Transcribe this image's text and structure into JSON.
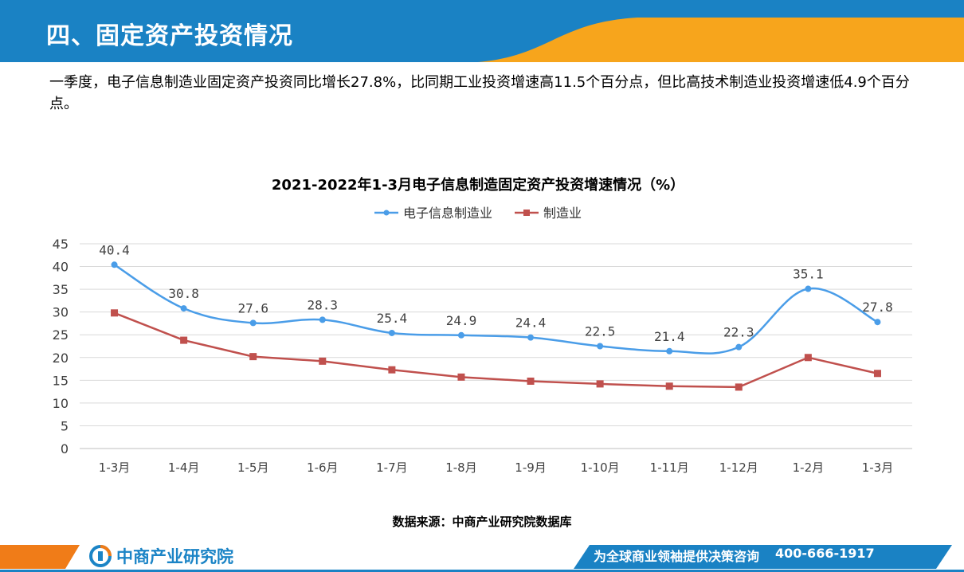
{
  "header": {
    "title": "四、固定资产投资情况",
    "colors": {
      "blue": "#1a82c4",
      "orange": "#f7a51c"
    }
  },
  "summary": "一季度，电子信息制造业固定资产投资同比增长27.8%，比同期工业投资增速高11.5个百分点，但比高技术制造业投资增速低4.9个百分点。",
  "chart_data": {
    "type": "line",
    "title": "2021-2022年1-3月电子信息制造固定资产投资增速情况（%）",
    "categories": [
      "1-3月",
      "1-4月",
      "1-5月",
      "1-6月",
      "1-7月",
      "1-8月",
      "1-9月",
      "1-10月",
      "1-11月",
      "1-12月",
      "1-2月",
      "1-3月"
    ],
    "ylim": [
      0,
      45
    ],
    "yticks": [
      0,
      5,
      10,
      15,
      20,
      25,
      30,
      35,
      40,
      45
    ],
    "grid": true,
    "legend_position": "top",
    "series": [
      {
        "name": "电子信息制造业",
        "color": "#4a9de8",
        "marker": "circle",
        "smooth": true,
        "values": [
          40.4,
          30.8,
          27.6,
          28.3,
          25.4,
          24.9,
          24.4,
          22.5,
          21.4,
          22.3,
          35.1,
          27.8
        ],
        "data_labels": [
          "40.4",
          "30.8",
          "27.6",
          "28.3",
          "25.4",
          "24.9",
          "24.4",
          "22.5",
          "21.4",
          "22.3",
          "35.1",
          "27.8"
        ]
      },
      {
        "name": "制造业",
        "color": "#c0504d",
        "marker": "square",
        "smooth": false,
        "values": [
          29.8,
          23.8,
          20.2,
          19.2,
          17.3,
          15.7,
          14.8,
          14.2,
          13.7,
          13.5,
          20.0,
          16.5
        ]
      }
    ]
  },
  "source": "数据来源：中商产业研究院数据库",
  "footer": {
    "logo_text": "中商产业研究院",
    "slogan": "为全球商业领袖提供决策咨询",
    "phone": "400-666-1917",
    "colors": {
      "blue": "#1a82c4",
      "orange": "#f07c18"
    }
  }
}
